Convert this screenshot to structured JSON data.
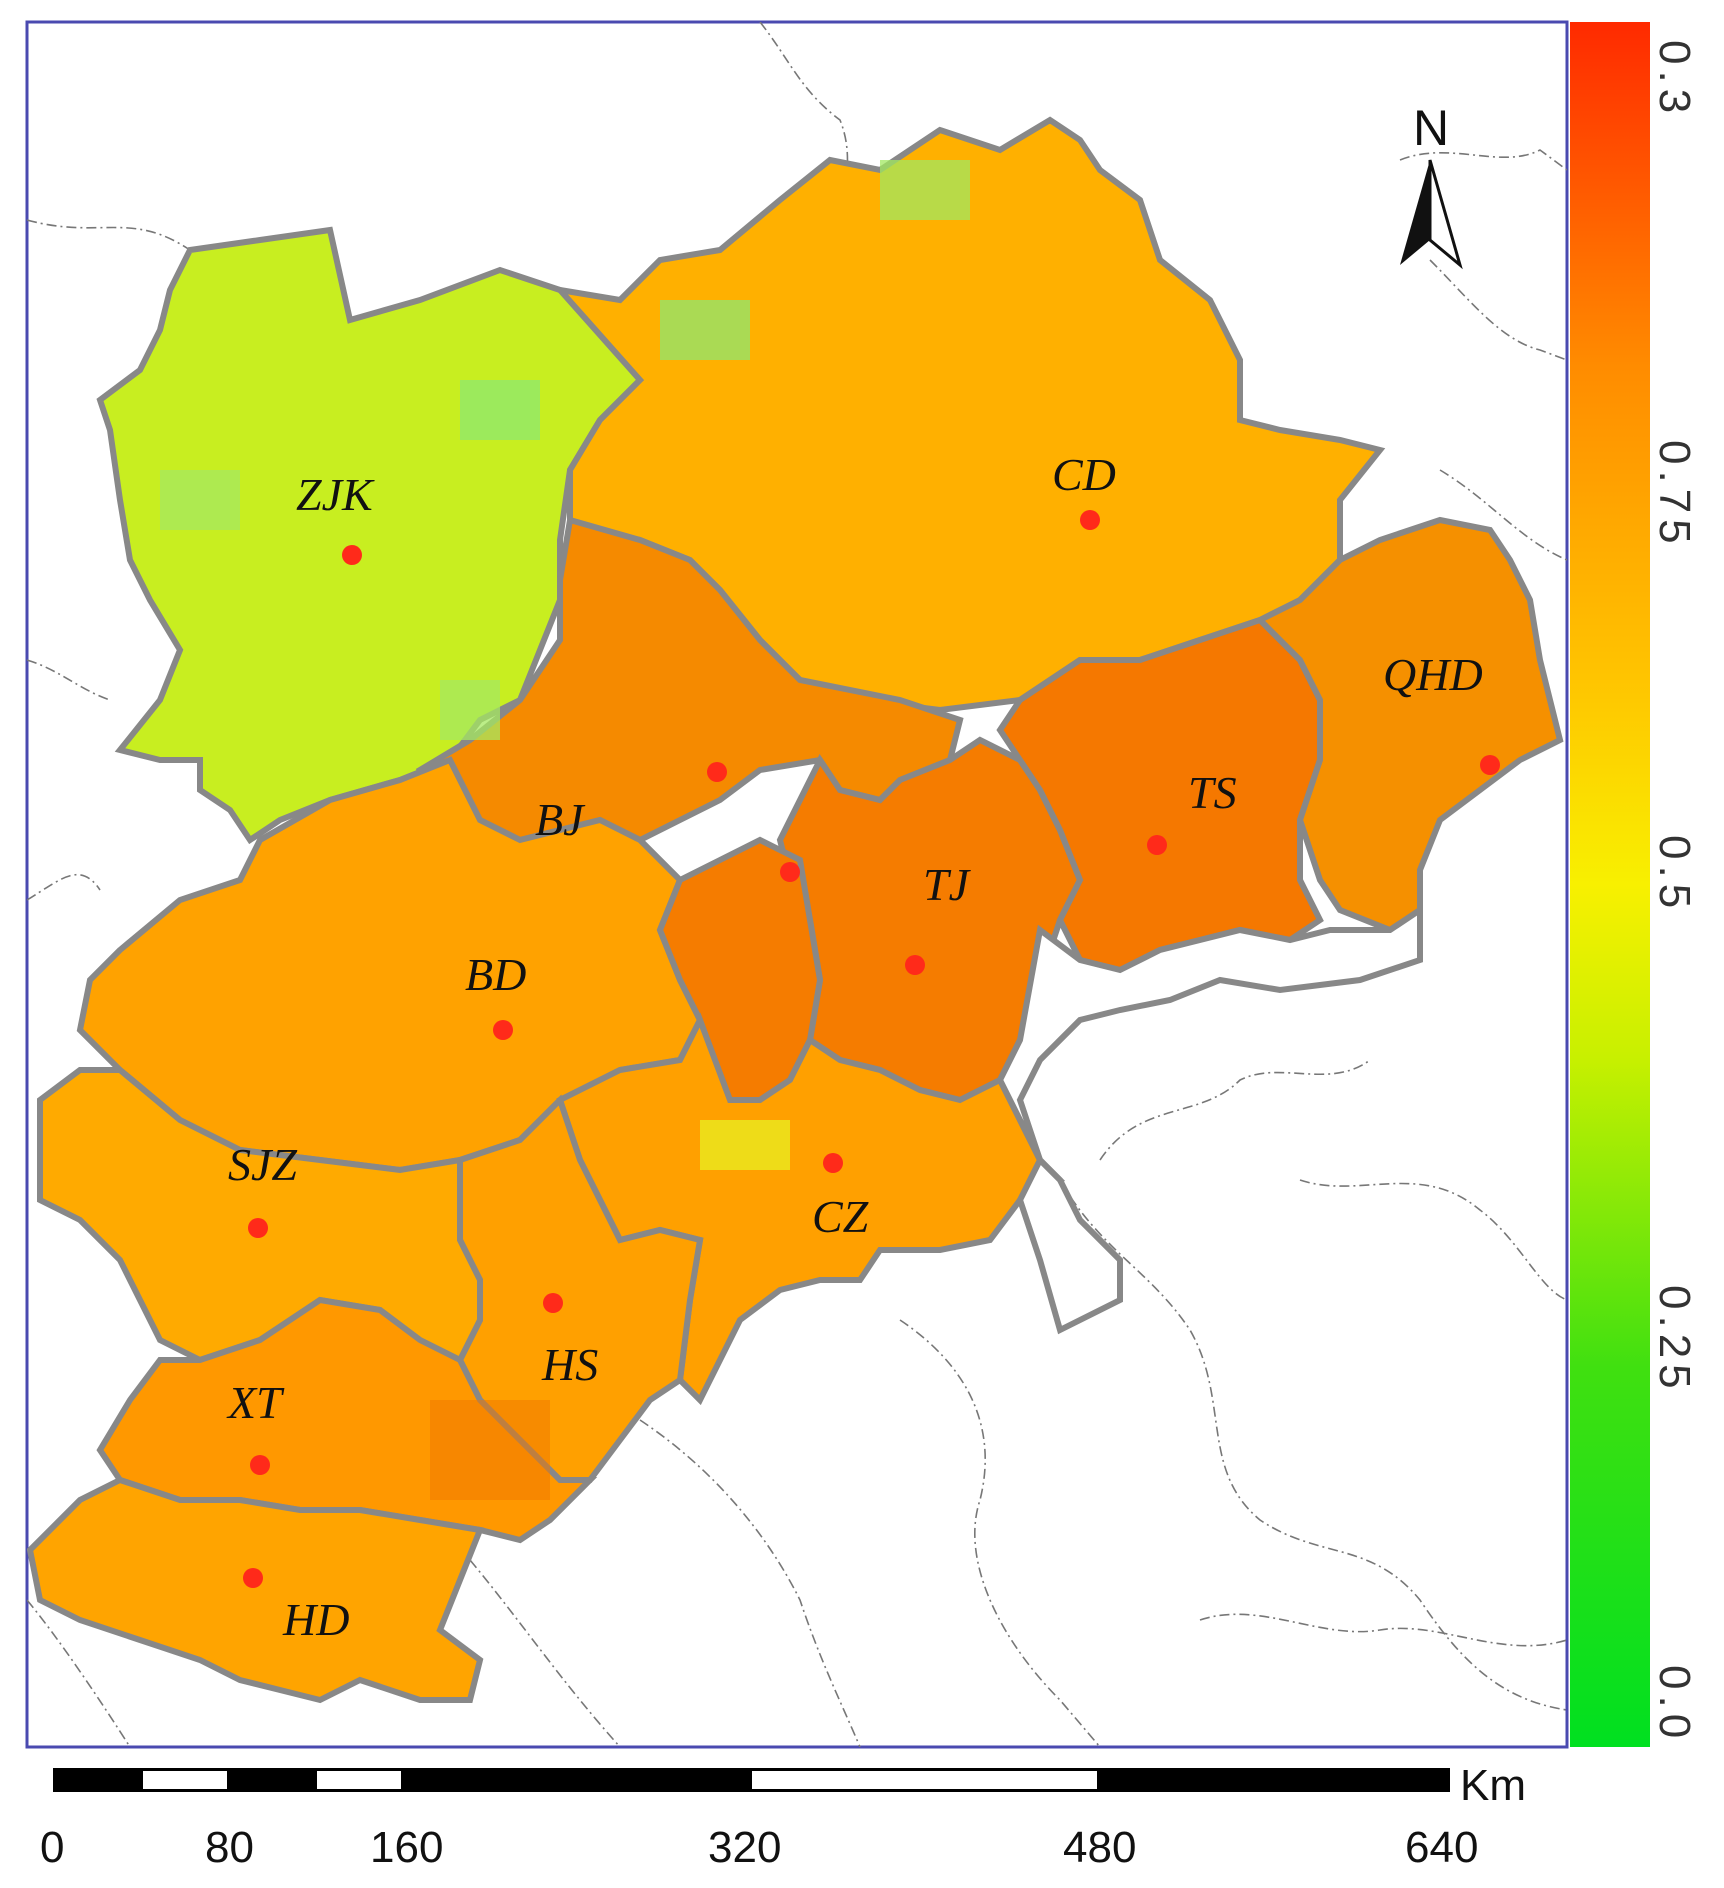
{
  "map": {
    "north_label": "N",
    "cities": [
      {
        "code": "ZJK"
      },
      {
        "code": "CD"
      },
      {
        "code": "QHD"
      },
      {
        "code": "BJ"
      },
      {
        "code": "TS"
      },
      {
        "code": "TJ"
      },
      {
        "code": "BD"
      },
      {
        "code": "SJZ"
      },
      {
        "code": "CZ"
      },
      {
        "code": "HS"
      },
      {
        "code": "XT"
      },
      {
        "code": "HD"
      }
    ],
    "colors": {
      "point": "#ff2a1a",
      "frame": "#4a4ab0",
      "boundary": "#888888",
      "background_lines": "#777777"
    }
  },
  "legend": {
    "ticks": [
      "0.3",
      "0.75",
      "0.5",
      "0.25",
      "0.0"
    ],
    "colors": [
      "#ff2a00",
      "#ff8a00",
      "#ffd400",
      "#f4f400",
      "#a8f000",
      "#40e000",
      "#00e000"
    ]
  },
  "scale_bar": {
    "unit": "Km",
    "ticks": [
      "0",
      "80",
      "160",
      "320",
      "480",
      "640"
    ]
  }
}
